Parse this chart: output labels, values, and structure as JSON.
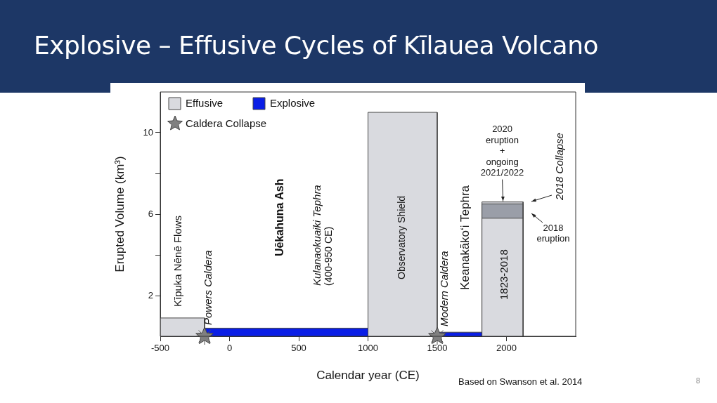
{
  "chart_data": {
    "type": "area",
    "title": "Explosive – Effusive Cycles of Kīlauea Volcano",
    "xlabel": "Calendar year (CE)",
    "ylabel": "Erupted Volume (km³)",
    "xlim": [
      -500,
      2500
    ],
    "xticks": [
      -500,
      0,
      500,
      1000,
      1500,
      2000
    ],
    "ylim": [
      0,
      12
    ],
    "yticks": [
      2,
      {
        "value": 4,
        "label": null
      },
      6,
      {
        "value": 8,
        "label": null
      },
      10
    ],
    "grid": false,
    "legend": "top left",
    "series": [
      {
        "name": "Effusive",
        "type": "area",
        "color": "#d9dadf",
        "x": [
          -500,
          -500,
          -180,
          -180,
          0,
          1000,
          1000,
          1500,
          1500,
          1700,
          1823,
          1823,
          2120,
          2120
        ],
        "values": [
          0,
          0.9,
          0.9,
          0,
          null,
          0,
          11,
          11,
          0,
          null,
          0,
          5.8,
          5.8,
          0
        ]
      },
      {
        "type": "area",
        "color": "#9a9ea8",
        "x": [
          1823,
          1823,
          2120,
          2120
        ],
        "values": [
          0,
          6.5,
          6.5,
          0
        ]
      },
      {
        "type": "area",
        "color": "#c9cbd0",
        "x": [
          1823,
          1823,
          2120,
          2120
        ],
        "values": [
          0,
          6.6,
          6.6,
          0
        ]
      },
      {
        "name": "Explosive",
        "type": "area",
        "color": "#0a1ee6",
        "x": [
          -180,
          1000,
          1000,
          1250,
          1500,
          1823,
          1823
        ],
        "values": [
          0.4,
          0.4,
          0,
          null,
          0.2,
          0.2,
          0
        ]
      },
      {
        "name": "Caldera Collapse",
        "type": "scatter",
        "color": "#808080",
        "marker": "star",
        "x": [
          -180,
          1500
        ],
        "values": [
          0,
          0
        ]
      }
    ],
    "annotations": [
      "Kīpuka Nēnē Flows",
      "Powers Caldera",
      "Uēkahuna Ash",
      "Kulanaokuaiki Tephra\n(400-950 CE)",
      "Observatory Shield",
      "Modern Caldera",
      "Keanakākoʻi Tephra",
      "1823-2018",
      {
        "text": "2020\neruption\n+\nongoing\n2021/2022",
        "x": 1970,
        "y": 6.6
      },
      "2018 Collapse",
      "2018\neruption",
      "Based on Swanson et al. 2014",
      "8"
    ]
  }
}
